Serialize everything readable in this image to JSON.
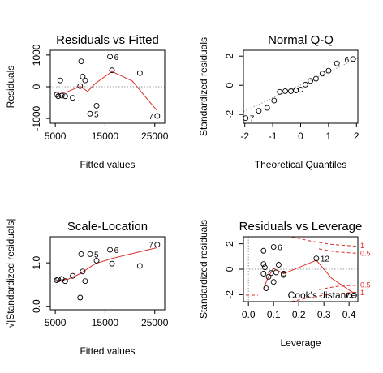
{
  "chart_data": [
    {
      "type": "scatter",
      "title": "Residuals vs Fitted",
      "xlabel": "Fitted values",
      "ylabel": "Residuals",
      "xlim": [
        4000,
        27000
      ],
      "ylim": [
        -1150,
        1150
      ],
      "xticks": [
        5000,
        15000,
        25000
      ],
      "xtick_labels": [
        "5000",
        "15000",
        "25000"
      ],
      "yticks": [
        -1000,
        0,
        1000
      ],
      "ytick_labels": [
        "-1000",
        "0",
        "1000"
      ],
      "reference_line": {
        "y": 0,
        "style": "dotted",
        "color": "#9a9a9a"
      },
      "points": [
        {
          "x": 5300,
          "y": -250
        },
        {
          "x": 5600,
          "y": -300
        },
        {
          "x": 6000,
          "y": 200
        },
        {
          "x": 6300,
          "y": -280
        },
        {
          "x": 7000,
          "y": -300
        },
        {
          "x": 8500,
          "y": -350
        },
        {
          "x": 10000,
          "y": 20
        },
        {
          "x": 10200,
          "y": 800
        },
        {
          "x": 10500,
          "y": 320
        },
        {
          "x": 11000,
          "y": 200
        },
        {
          "x": 12000,
          "y": -850
        },
        {
          "x": 13300,
          "y": -600
        },
        {
          "x": 16000,
          "y": 950
        },
        {
          "x": 16400,
          "y": 520
        },
        {
          "x": 22000,
          "y": 430
        },
        {
          "x": 25500,
          "y": -920
        }
      ],
      "point_labels": [
        {
          "x": 16000,
          "y": 950,
          "text": "6"
        },
        {
          "x": 12000,
          "y": -850,
          "text": "5"
        },
        {
          "x": 25500,
          "y": -920,
          "text": "7"
        }
      ],
      "smoother": {
        "color": "#d9302a",
        "x": [
          5300,
          7500,
          10000,
          11500,
          13000,
          16400,
          20500,
          23000,
          25500
        ],
        "y": [
          -250,
          -150,
          10,
          -150,
          100,
          480,
          180,
          -300,
          -760
        ]
      }
    },
    {
      "type": "scatter",
      "title": "Normal Q-Q",
      "xlabel": "Theoretical Quantiles",
      "ylabel": "Standardized residuals",
      "xlim": [
        -2.05,
        2.05
      ],
      "ylim": [
        -2.6,
        2.4
      ],
      "xticks": [
        -2,
        -1,
        0,
        1,
        2
      ],
      "xtick_labels": [
        "-2",
        "-1",
        "0",
        "1",
        "2"
      ],
      "yticks": [
        -2,
        0,
        2
      ],
      "ytick_labels": [
        "-2",
        "0",
        "2"
      ],
      "reference_line": {
        "x": [
          -2.05,
          2.05
        ],
        "y": [
          -1.8,
          1.85
        ],
        "style": "dotted",
        "color": "#9a9a9a"
      },
      "points": [
        {
          "x": -1.97,
          "y": -2.25
        },
        {
          "x": -1.5,
          "y": -1.75
        },
        {
          "x": -1.2,
          "y": -1.55
        },
        {
          "x": -0.95,
          "y": -1.05
        },
        {
          "x": -0.75,
          "y": -0.45
        },
        {
          "x": -0.55,
          "y": -0.4
        },
        {
          "x": -0.35,
          "y": -0.4
        },
        {
          "x": -0.17,
          "y": -0.35
        },
        {
          "x": 0.0,
          "y": -0.3
        },
        {
          "x": 0.17,
          "y": 0.05
        },
        {
          "x": 0.35,
          "y": 0.3
        },
        {
          "x": 0.55,
          "y": 0.45
        },
        {
          "x": 0.78,
          "y": 0.8
        },
        {
          "x": 1.0,
          "y": 1.0
        },
        {
          "x": 1.3,
          "y": 1.5
        },
        {
          "x": 1.88,
          "y": 1.8
        }
      ],
      "point_labels": [
        {
          "x": 1.88,
          "y": 1.8,
          "text": "6"
        },
        {
          "x": -1.97,
          "y": -2.25,
          "text": "7"
        }
      ]
    },
    {
      "type": "scatter",
      "title": "Scale-Location",
      "xlabel": "Fitted values",
      "ylabel": "√|Standardized residuals|",
      "xlim": [
        4000,
        27000
      ],
      "ylim": [
        -0.08,
        1.6
      ],
      "xticks": [
        5000,
        15000,
        25000
      ],
      "xtick_labels": [
        "5000",
        "15000",
        "25000"
      ],
      "yticks": [
        0.0,
        1.0
      ],
      "ytick_labels": [
        "0.0",
        "1.0"
      ],
      "points": [
        {
          "x": 5300,
          "y": 0.6
        },
        {
          "x": 5600,
          "y": 0.62
        },
        {
          "x": 6300,
          "y": 0.63
        },
        {
          "x": 7000,
          "y": 0.58
        },
        {
          "x": 8500,
          "y": 0.7
        },
        {
          "x": 10000,
          "y": 0.2
        },
        {
          "x": 10200,
          "y": 1.2
        },
        {
          "x": 10500,
          "y": 0.8
        },
        {
          "x": 11000,
          "y": 0.58
        },
        {
          "x": 12000,
          "y": 1.2
        },
        {
          "x": 13300,
          "y": 1.05
        },
        {
          "x": 16000,
          "y": 1.3
        },
        {
          "x": 16400,
          "y": 0.98
        },
        {
          "x": 22000,
          "y": 0.93
        },
        {
          "x": 25500,
          "y": 1.42
        }
      ],
      "point_labels": [
        {
          "x": 12000,
          "y": 1.2,
          "text": "5"
        },
        {
          "x": 16000,
          "y": 1.3,
          "text": "6"
        },
        {
          "x": 25500,
          "y": 1.42,
          "text": "7"
        }
      ],
      "smoother": {
        "color": "#d9302a",
        "x": [
          5300,
          7500,
          10000,
          13000,
          16400,
          20000,
          25500
        ],
        "y": [
          0.6,
          0.62,
          0.75,
          0.98,
          1.1,
          1.2,
          1.35
        ]
      }
    },
    {
      "type": "scatter",
      "title": "Residuals vs Leverage",
      "xlabel": "Leverage",
      "ylabel": "Standardized residuals",
      "xlim": [
        -0.02,
        0.435
      ],
      "ylim": [
        -2.55,
        2.55
      ],
      "xticks": [
        0.0,
        0.1,
        0.2,
        0.3,
        0.4
      ],
      "xtick_labels": [
        "0.0",
        "0.1",
        "0.2",
        "0.3",
        "0.4"
      ],
      "yticks": [
        -2,
        0,
        2
      ],
      "ytick_labels": [
        "-2",
        "0",
        "2"
      ],
      "reference_lines": [
        {
          "y": 0,
          "style": "dotted",
          "color": "#9a9a9a"
        },
        {
          "x": 0,
          "style": "dotted",
          "color": "#9a9a9a"
        }
      ],
      "points": [
        {
          "x": 0.06,
          "y": 1.45
        },
        {
          "x": 0.06,
          "y": 0.4
        },
        {
          "x": 0.065,
          "y": 0.15
        },
        {
          "x": 0.06,
          "y": -0.35
        },
        {
          "x": 0.07,
          "y": -1.5
        },
        {
          "x": 0.08,
          "y": -0.6
        },
        {
          "x": 0.09,
          "y": -0.3
        },
        {
          "x": 0.1,
          "y": 1.75
        },
        {
          "x": 0.11,
          "y": -0.25
        },
        {
          "x": 0.12,
          "y": 0.35
        },
        {
          "x": 0.14,
          "y": -0.35
        },
        {
          "x": 0.14,
          "y": -0.45
        },
        {
          "x": 0.1,
          "y": -1.0
        },
        {
          "x": 0.27,
          "y": 0.85
        },
        {
          "x": 0.42,
          "y": -2.05
        }
      ],
      "point_labels": [
        {
          "x": 0.1,
          "y": 1.75,
          "text": "6"
        },
        {
          "x": 0.27,
          "y": 0.85,
          "text": "12"
        },
        {
          "x": 0.42,
          "y": -2.05,
          "text": "7"
        }
      ],
      "smoother": {
        "color": "#d9302a",
        "x": [
          0.06,
          0.08,
          0.1,
          0.14,
          0.27,
          0.33,
          0.42
        ],
        "y": [
          -1.55,
          -0.55,
          0.05,
          -0.35,
          0.7,
          -0.7,
          -1.9
        ]
      },
      "cooks_distance": {
        "legend": "Cook's distance",
        "color": "#d9302a",
        "levels": [
          {
            "label": "1",
            "sign": 1,
            "x": [
              0.17,
              0.25,
              0.33,
              0.435
            ],
            "y": [
              2.55,
              2.2,
              1.95,
              1.8
            ]
          },
          {
            "label": "0.5",
            "sign": 1,
            "x": [
              0.28,
              0.35,
              0.435
            ],
            "y": [
              1.6,
              1.35,
              1.25
            ]
          },
          {
            "label": "0.5",
            "sign": -1,
            "x": [
              0.28,
              0.35,
              0.435
            ],
            "y": [
              -1.6,
              -1.35,
              -1.25
            ]
          },
          {
            "label": "1",
            "sign": -1,
            "x": [
              0.17,
              0.25,
              0.33,
              0.435
            ],
            "y": [
              -2.55,
              -2.2,
              -1.95,
              -1.8
            ]
          }
        ],
        "right_labels": [
          "1",
          "0.5",
          "0.5",
          "1"
        ]
      }
    }
  ]
}
